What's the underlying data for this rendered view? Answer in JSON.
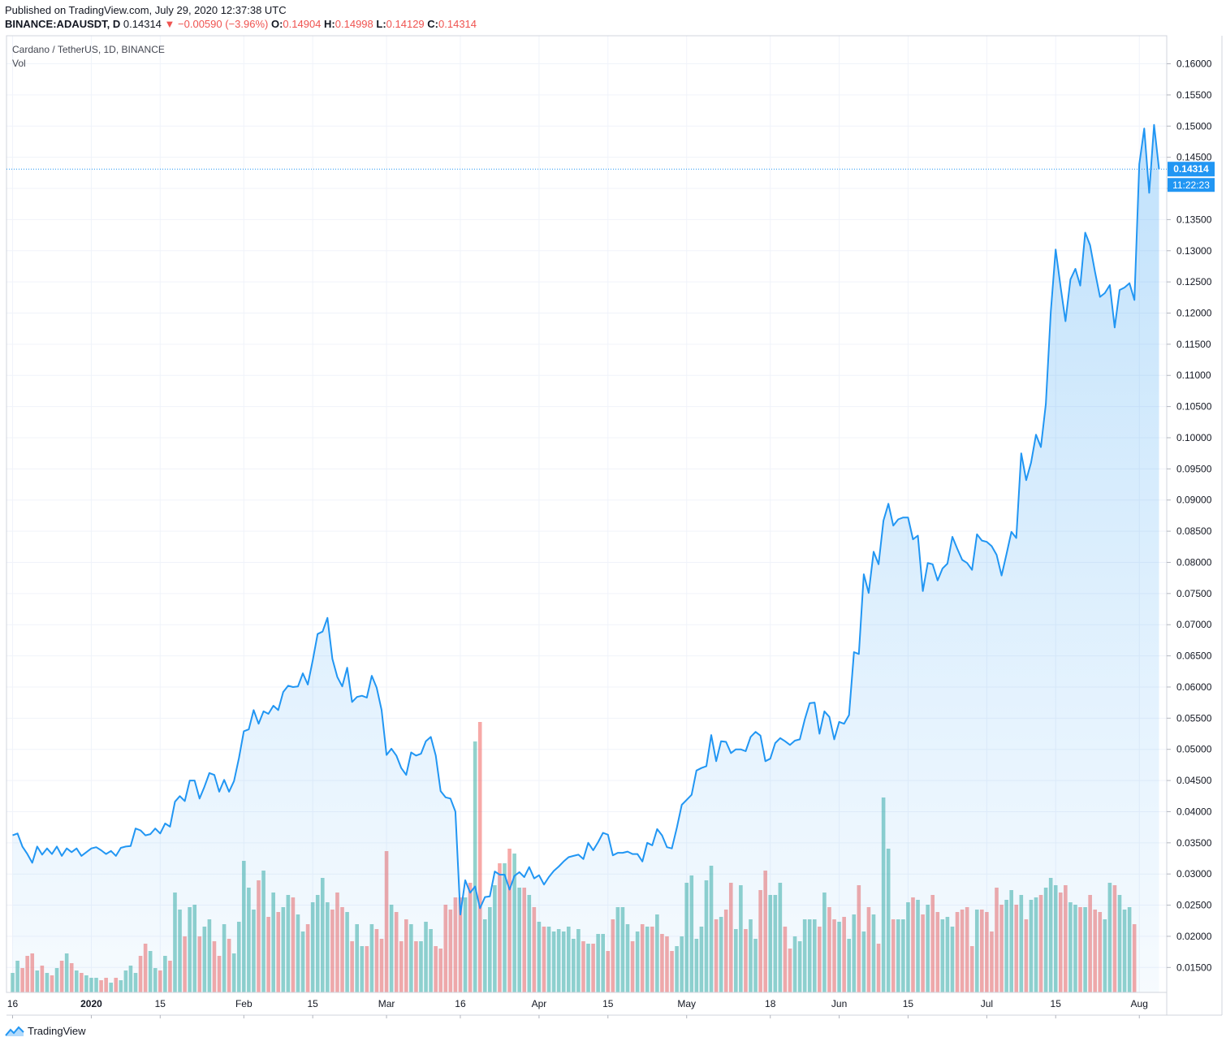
{
  "header": {
    "published": "Published on TradingView.com, July 29, 2020 12:37:38 UTC",
    "symbol": "BINANCE:ADAUSDT, D",
    "last": "0.14314",
    "change": "−0.00590 (−3.96%)",
    "o_label": "O:",
    "o_value": "0.14904",
    "h_label": "H:",
    "h_value": "0.14998",
    "l_label": "L:",
    "l_value": "0.14129",
    "c_label": "C:",
    "c_value": "0.14314"
  },
  "legend": {
    "title": "Cardano / TetherUS, 1D, BINANCE",
    "volume": "Vol"
  },
  "price_label": {
    "value": "0.14314",
    "countdown": "11:22:23"
  },
  "brand": {
    "name": "TradingView"
  },
  "colors": {
    "line": "#2196f3",
    "up": "#26a69a",
    "down": "#ef5350",
    "grid": "#f0f3fa",
    "label_bg": "#2196f3"
  },
  "chart_data": {
    "type": "area",
    "title": "Cardano / TetherUS, 1D, BINANCE",
    "y_range": [
      0.011,
      0.1645
    ],
    "y_ticks": [
      "0.01500",
      "0.02000",
      "0.02500",
      "0.03000",
      "0.03500",
      "0.04000",
      "0.04500",
      "0.05000",
      "0.05500",
      "0.06000",
      "0.06500",
      "0.07000",
      "0.07500",
      "0.08000",
      "0.08500",
      "0.09000",
      "0.09500",
      "0.10000",
      "0.10500",
      "0.11000",
      "0.11500",
      "0.12000",
      "0.12500",
      "0.13000",
      "0.13500",
      "0.14000",
      "0.14500",
      "0.15000",
      "0.15500",
      "0.16000"
    ],
    "x_ticks": [
      {
        "label": "16",
        "day": 0
      },
      {
        "label": "2020",
        "day": 16
      },
      {
        "label": "15",
        "day": 30
      },
      {
        "label": "Feb",
        "day": 47
      },
      {
        "label": "15",
        "day": 61
      },
      {
        "label": "Mar",
        "day": 76
      },
      {
        "label": "16",
        "day": 91
      },
      {
        "label": "Apr",
        "day": 107
      },
      {
        "label": "15",
        "day": 121
      },
      {
        "label": "May",
        "day": 137
      },
      {
        "label": "18",
        "day": 154
      },
      {
        "label": "Jun",
        "day": 168
      },
      {
        "label": "15",
        "day": 182
      },
      {
        "label": "Jul",
        "day": 198
      },
      {
        "label": "15",
        "day": 212
      },
      {
        "label": "Aug",
        "day": 229
      }
    ],
    "start_date": "2019-12-16",
    "series": [
      {
        "name": "Close",
        "values": [
          0.0362,
          0.0365,
          0.0344,
          0.0332,
          0.0318,
          0.0344,
          0.0331,
          0.0341,
          0.0332,
          0.0344,
          0.0329,
          0.0341,
          0.0335,
          0.0341,
          0.0329,
          0.0335,
          0.0341,
          0.0343,
          0.0338,
          0.0332,
          0.0337,
          0.0329,
          0.0342,
          0.0344,
          0.0345,
          0.0373,
          0.037,
          0.0362,
          0.0364,
          0.0373,
          0.0365,
          0.0381,
          0.0376,
          0.0416,
          0.0425,
          0.0417,
          0.045,
          0.045,
          0.0421,
          0.044,
          0.0462,
          0.0459,
          0.0432,
          0.0451,
          0.0432,
          0.0449,
          0.0486,
          0.0529,
          0.0532,
          0.0563,
          0.0541,
          0.0561,
          0.0557,
          0.057,
          0.0563,
          0.0592,
          0.0602,
          0.06,
          0.0601,
          0.0622,
          0.0604,
          0.0643,
          0.0685,
          0.0689,
          0.0711,
          0.0645,
          0.0616,
          0.0601,
          0.0631,
          0.0576,
          0.0584,
          0.0586,
          0.0583,
          0.0618,
          0.0599,
          0.0563,
          0.0491,
          0.0501,
          0.049,
          0.047,
          0.0459,
          0.0495,
          0.049,
          0.0493,
          0.0513,
          0.052,
          0.049,
          0.0433,
          0.0423,
          0.0421,
          0.04,
          0.0235,
          0.029,
          0.027,
          0.028,
          0.0245,
          0.0263,
          0.0264,
          0.0304,
          0.0299,
          0.0299,
          0.0275,
          0.0297,
          0.0303,
          0.0295,
          0.0311,
          0.0293,
          0.0298,
          0.0283,
          0.0295,
          0.0305,
          0.0312,
          0.032,
          0.0327,
          0.0329,
          0.0331,
          0.0324,
          0.035,
          0.0338,
          0.0351,
          0.0366,
          0.0363,
          0.033,
          0.0334,
          0.0334,
          0.0336,
          0.0332,
          0.0332,
          0.032,
          0.035,
          0.0346,
          0.0372,
          0.0362,
          0.0343,
          0.0341,
          0.0374,
          0.0411,
          0.0419,
          0.0427,
          0.0466,
          0.047,
          0.0473,
          0.0523,
          0.0481,
          0.0513,
          0.0512,
          0.0494,
          0.05,
          0.05,
          0.0497,
          0.052,
          0.0528,
          0.0522,
          0.0481,
          0.0485,
          0.051,
          0.0518,
          0.0513,
          0.0507,
          0.0514,
          0.0516,
          0.0548,
          0.0574,
          0.0575,
          0.0525,
          0.0561,
          0.0552,
          0.0516,
          0.0544,
          0.0541,
          0.0555,
          0.0656,
          0.0653,
          0.0781,
          0.0751,
          0.0817,
          0.0797,
          0.0867,
          0.0894,
          0.0859,
          0.0869,
          0.0872,
          0.0872,
          0.0837,
          0.0843,
          0.0754,
          0.0799,
          0.0797,
          0.0771,
          0.079,
          0.0798,
          0.0841,
          0.0822,
          0.0804,
          0.0799,
          0.0788,
          0.0845,
          0.0835,
          0.0833,
          0.0826,
          0.0812,
          0.0779,
          0.0813,
          0.0849,
          0.0839,
          0.0975,
          0.0932,
          0.096,
          0.1005,
          0.0985,
          0.1054,
          0.1202,
          0.1302,
          0.1242,
          0.1187,
          0.1254,
          0.1271,
          0.1244,
          0.1329,
          0.1309,
          0.1266,
          0.1226,
          0.1232,
          0.1245,
          0.1177,
          0.1237,
          0.1241,
          0.1248,
          0.1221,
          0.1439,
          0.1496,
          0.1393,
          0.1502,
          0.1431
        ],
        "color": "#2196f3"
      },
      {
        "name": "Vol",
        "values": [
          0.8,
          1.3,
          1.0,
          1.5,
          1.6,
          0.9,
          1.1,
          0.8,
          0.7,
          1.0,
          1.3,
          1.6,
          1.2,
          0.9,
          0.8,
          0.7,
          0.6,
          0.6,
          0.5,
          0.6,
          0.4,
          0.6,
          0.5,
          0.9,
          1.1,
          0.8,
          1.5,
          2.0,
          1.7,
          1.0,
          0.9,
          1.5,
          1.3,
          4.1,
          3.4,
          2.3,
          3.5,
          3.6,
          2.3,
          2.7,
          3.0,
          2.1,
          1.5,
          2.8,
          2.2,
          1.6,
          2.9,
          5.4,
          4.3,
          3.4,
          4.6,
          5.0,
          3.1,
          4.1,
          3.3,
          3.5,
          4.0,
          3.9,
          3.2,
          2.5,
          2.8,
          3.7,
          4.0,
          4.7,
          3.7,
          3.4,
          4.1,
          3.5,
          3.3,
          2.1,
          2.8,
          1.9,
          1.9,
          2.8,
          2.6,
          2.2,
          5.8,
          3.6,
          3.3,
          2.1,
          3.0,
          2.8,
          2.1,
          2.1,
          2.9,
          2.6,
          1.9,
          1.8,
          3.6,
          3.4,
          3.9,
          3.9,
          3.9,
          4.5,
          10.3,
          11.1,
          3.0,
          3.5,
          4.4,
          5.3,
          5.3,
          5.9,
          5.7,
          4.3,
          4.3,
          4.0,
          3.5,
          2.9,
          2.7,
          2.7,
          2.5,
          2.6,
          2.5,
          2.7,
          2.2,
          2.6,
          2.1,
          2.0,
          2.0,
          2.4,
          2.4,
          1.7,
          3.0,
          3.5,
          3.5,
          2.8,
          2.1,
          2.5,
          2.8,
          2.7,
          2.7,
          3.2,
          2.4,
          2.3,
          1.7,
          1.9,
          2.3,
          4.5,
          4.8,
          2.2,
          2.7,
          4.6,
          5.2,
          3.0,
          3.1,
          3.4,
          4.5,
          2.6,
          4.4,
          2.6,
          3.0,
          2.2,
          4.2,
          5.0,
          4.0,
          4.0,
          4.5,
          2.7,
          1.8,
          2.3,
          2.1,
          3.0,
          3.0,
          3.0,
          2.7,
          4.1,
          3.5,
          3.0,
          2.9,
          3.1,
          2.2,
          3.2,
          4.4,
          2.5,
          3.5,
          3.2,
          2.0,
          8.0,
          5.9,
          3.0,
          3.0,
          3.0,
          3.7,
          3.9,
          3.8,
          3.2,
          3.6,
          4.0,
          3.3,
          3.0,
          3.1,
          2.7,
          3.3,
          3.4,
          3.5,
          1.9,
          3.4,
          3.4,
          3.3,
          2.5,
          4.3,
          3.6,
          3.8,
          4.2,
          3.6,
          4.0,
          3.0,
          3.8,
          3.9,
          4.0,
          4.3,
          4.7,
          4.4,
          4.1,
          4.4,
          3.7,
          3.6,
          3.5,
          3.5,
          4.0,
          3.4,
          3.3,
          3.0,
          4.5,
          4.4,
          4.0,
          3.4,
          3.5,
          2.8
        ]
      }
    ],
    "volume_colors": "up/down by close",
    "grid": true,
    "last_price_line": true
  }
}
